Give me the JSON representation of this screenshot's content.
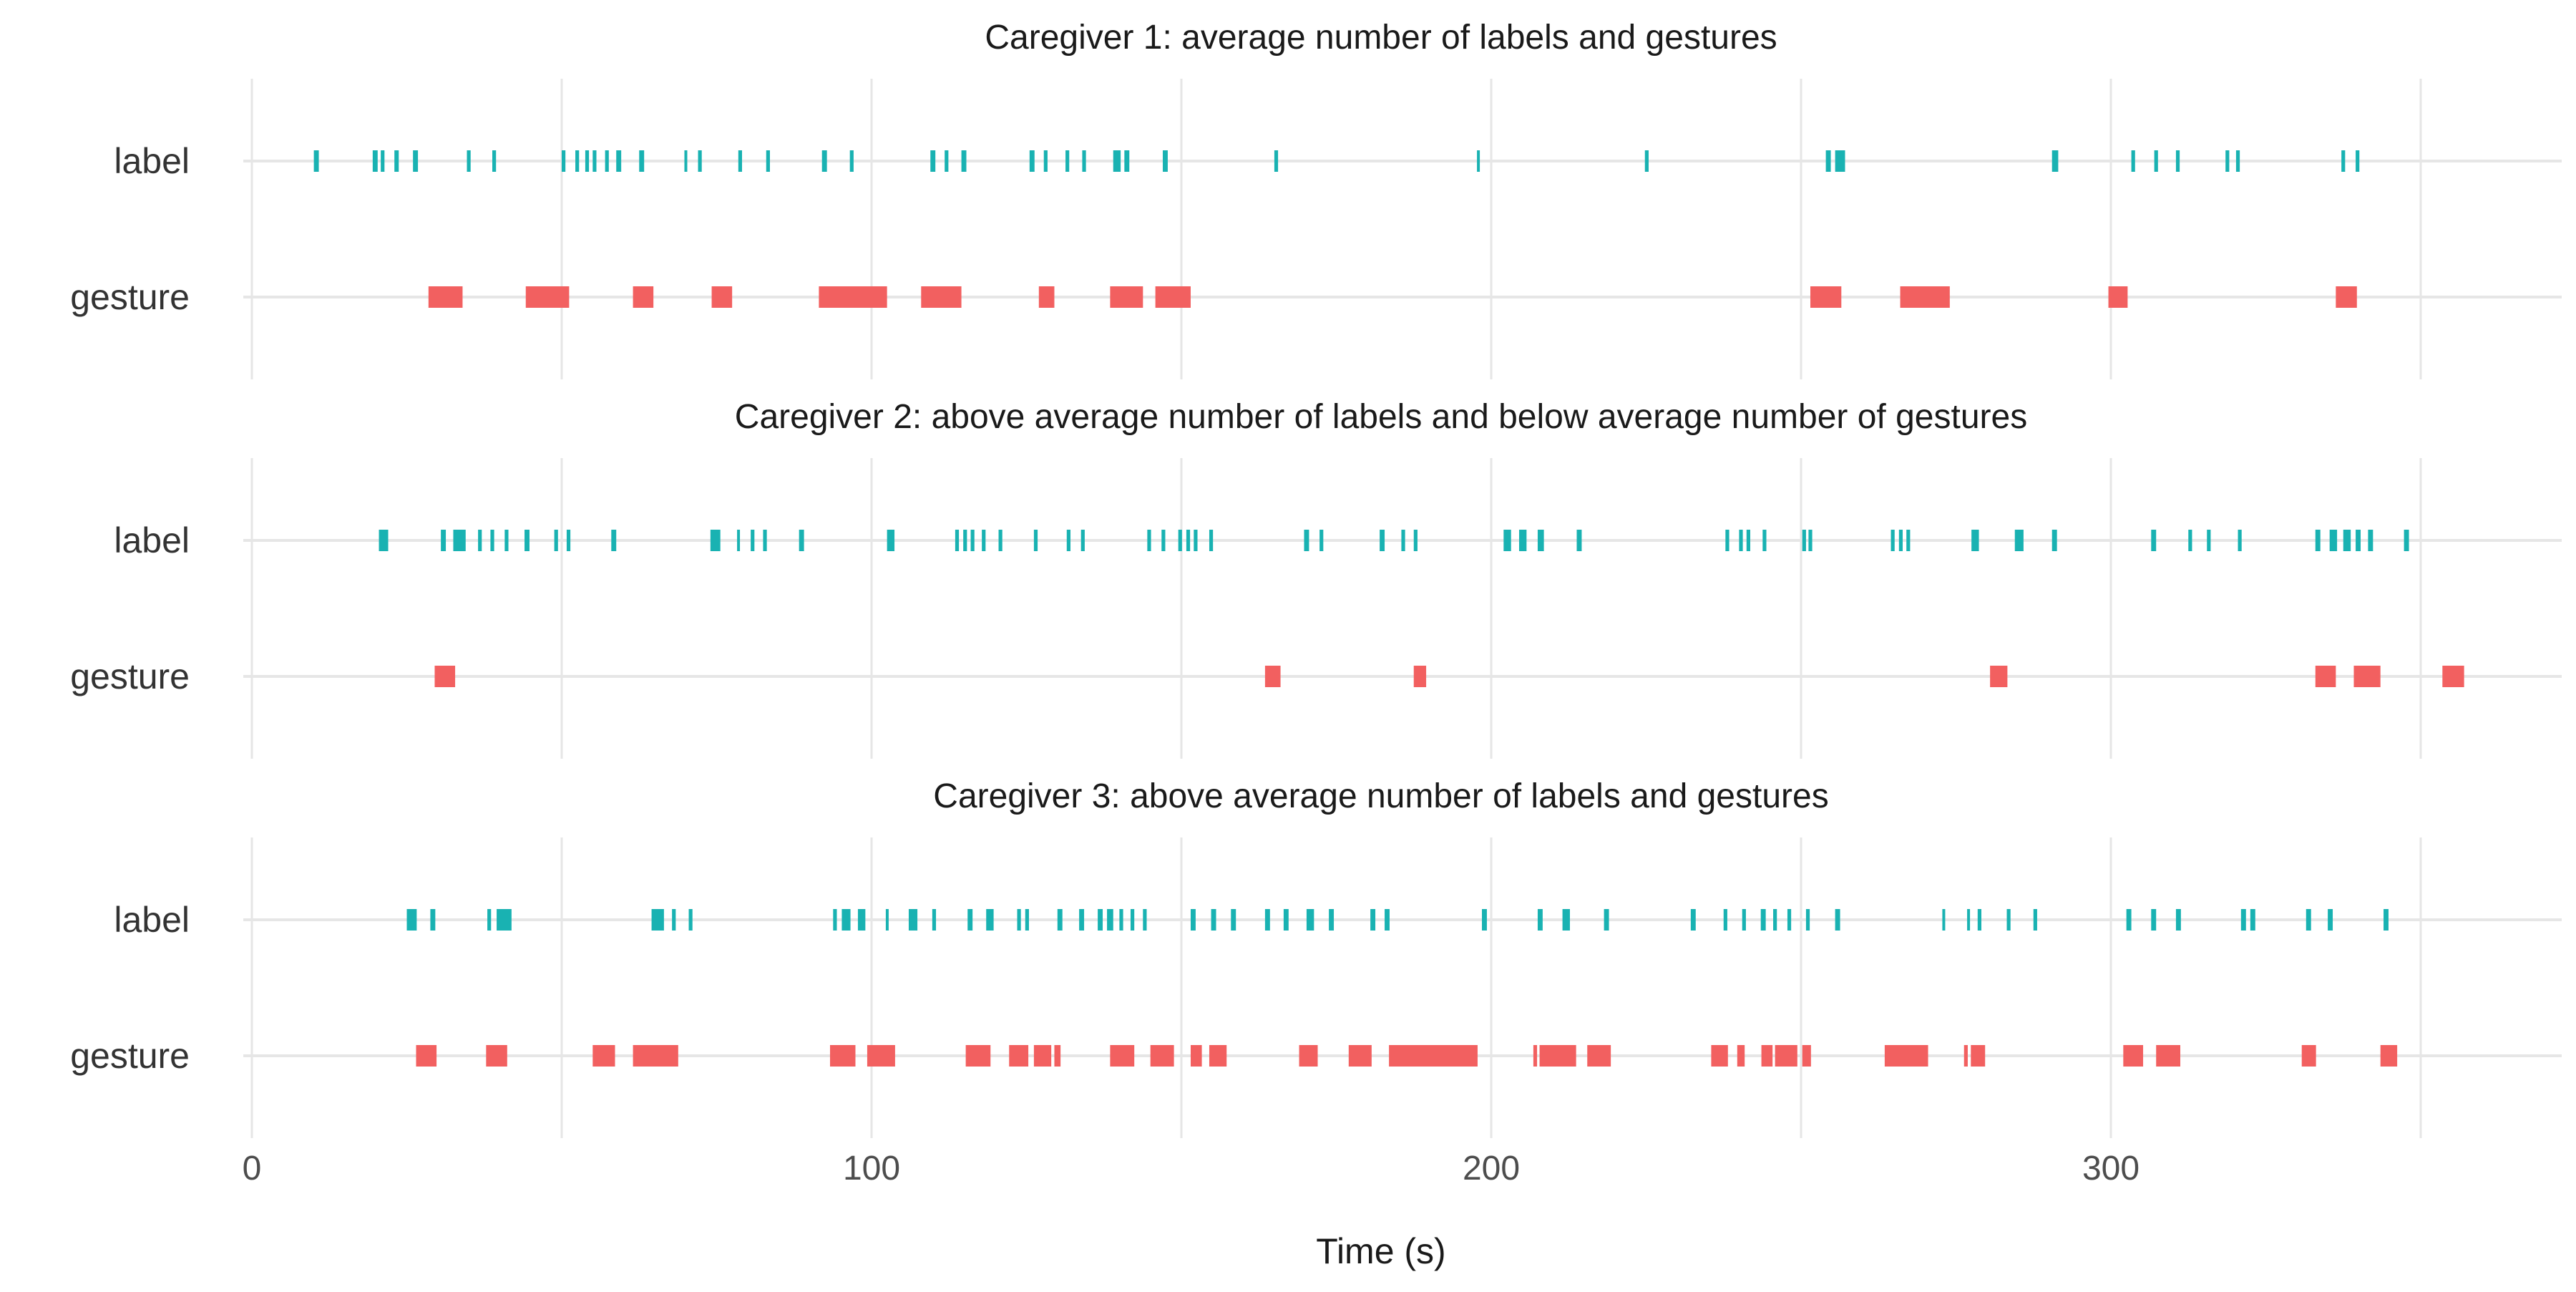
{
  "chart_data": {
    "type": "timeline",
    "xlabel": "Time (s)",
    "xlim": [
      -6,
      373
    ],
    "x_ticks": [
      0,
      100,
      200,
      300
    ],
    "minor_ticks": [
      50,
      150,
      250,
      350
    ],
    "grid": true,
    "colors": {
      "label": "#19b2b2",
      "gesture": "#f26060",
      "grid": "#e6e6e6"
    },
    "rows": [
      "label",
      "gesture"
    ],
    "panels": [
      {
        "title": "Caregiver 1: average number of labels and gestures",
        "label": [
          [
            10.0,
            10.8
          ],
          [
            19.5,
            20.3
          ],
          [
            20.8,
            21.4
          ],
          [
            23.0,
            23.7
          ],
          [
            26.0,
            26.8
          ],
          [
            34.7,
            35.3
          ],
          [
            38.8,
            39.4
          ],
          [
            50.0,
            50.6
          ],
          [
            52.2,
            52.8
          ],
          [
            53.8,
            54.4
          ],
          [
            55.0,
            55.6
          ],
          [
            57.0,
            57.6
          ],
          [
            58.8,
            59.6
          ],
          [
            62.5,
            63.3
          ],
          [
            69.8,
            70.2
          ],
          [
            72.0,
            72.6
          ],
          [
            78.5,
            79.1
          ],
          [
            83.0,
            83.6
          ],
          [
            92.0,
            92.8
          ],
          [
            96.5,
            97.1
          ],
          [
            109.5,
            110.3
          ],
          [
            111.8,
            112.4
          ],
          [
            114.5,
            115.3
          ],
          [
            125.5,
            126.3
          ],
          [
            127.8,
            128.4
          ],
          [
            131.3,
            131.9
          ],
          [
            134.0,
            134.6
          ],
          [
            139.0,
            140.2
          ],
          [
            140.8,
            141.6
          ],
          [
            147.0,
            147.8
          ],
          [
            165.0,
            165.6
          ],
          [
            197.7,
            198.1
          ],
          [
            224.8,
            225.4
          ],
          [
            254.0,
            254.8
          ],
          [
            255.5,
            257.1
          ],
          [
            290.5,
            291.5
          ],
          [
            303.3,
            303.9
          ],
          [
            307.0,
            307.6
          ],
          [
            310.5,
            311.1
          ],
          [
            318.5,
            319.1
          ],
          [
            320.2,
            320.8
          ],
          [
            337.2,
            337.8
          ],
          [
            339.5,
            340.1
          ]
        ],
        "gesture": [
          [
            28.5,
            34.0
          ],
          [
            44.2,
            51.2
          ],
          [
            61.5,
            64.8
          ],
          [
            74.2,
            77.5
          ],
          [
            91.5,
            102.5
          ],
          [
            108.0,
            114.5
          ],
          [
            127.0,
            129.5
          ],
          [
            138.5,
            143.8
          ],
          [
            145.8,
            151.5
          ],
          [
            251.5,
            256.5
          ],
          [
            266.0,
            274.0
          ],
          [
            299.6,
            302.7
          ],
          [
            336.3,
            339.7
          ]
        ]
      },
      {
        "title": "Caregiver 2: above average number of labels and below average number of gestures",
        "label": [
          [
            20.5,
            22.0
          ],
          [
            30.5,
            31.3
          ],
          [
            32.5,
            34.5
          ],
          [
            36.5,
            37.1
          ],
          [
            38.5,
            39.1
          ],
          [
            40.8,
            41.4
          ],
          [
            44.0,
            44.8
          ],
          [
            48.8,
            49.4
          ],
          [
            50.8,
            51.4
          ],
          [
            58.0,
            58.8
          ],
          [
            74.0,
            75.6
          ],
          [
            78.3,
            78.7
          ],
          [
            80.5,
            81.1
          ],
          [
            82.5,
            83.1
          ],
          [
            88.3,
            89.1
          ],
          [
            102.5,
            103.7
          ],
          [
            113.5,
            114.1
          ],
          [
            114.8,
            115.4
          ],
          [
            116.0,
            116.6
          ],
          [
            117.8,
            118.4
          ],
          [
            120.5,
            121.1
          ],
          [
            126.2,
            126.8
          ],
          [
            131.5,
            132.1
          ],
          [
            133.8,
            134.4
          ],
          [
            144.5,
            145.1
          ],
          [
            146.8,
            147.4
          ],
          [
            149.5,
            150.1
          ],
          [
            150.8,
            151.4
          ],
          [
            152.0,
            152.6
          ],
          [
            154.5,
            155.1
          ],
          [
            169.8,
            170.6
          ],
          [
            172.3,
            172.9
          ],
          [
            182.0,
            182.8
          ],
          [
            185.5,
            186.1
          ],
          [
            187.5,
            188.1
          ],
          [
            202.0,
            203.2
          ],
          [
            204.5,
            205.7
          ],
          [
            207.5,
            208.5
          ],
          [
            213.8,
            214.6
          ],
          [
            237.8,
            238.4
          ],
          [
            240.0,
            240.6
          ],
          [
            241.2,
            241.8
          ],
          [
            243.8,
            244.4
          ],
          [
            250.2,
            250.8
          ],
          [
            251.2,
            251.8
          ],
          [
            264.5,
            265.1
          ],
          [
            265.8,
            266.4
          ],
          [
            267.0,
            267.6
          ],
          [
            277.5,
            278.7
          ],
          [
            284.5,
            285.9
          ],
          [
            290.5,
            291.3
          ],
          [
            306.5,
            307.3
          ],
          [
            312.5,
            313.1
          ],
          [
            315.5,
            316.1
          ],
          [
            320.5,
            321.1
          ],
          [
            333.0,
            333.8
          ],
          [
            335.3,
            336.5
          ],
          [
            337.5,
            338.7
          ],
          [
            339.5,
            340.3
          ],
          [
            341.5,
            342.3
          ],
          [
            347.3,
            348.1
          ]
        ],
        "gesture": [
          [
            29.5,
            32.8
          ],
          [
            163.5,
            166.0
          ],
          [
            187.5,
            189.5
          ],
          [
            280.5,
            283.3
          ],
          [
            333.0,
            336.3
          ],
          [
            339.2,
            343.5
          ],
          [
            353.5,
            357.0
          ]
        ]
      },
      {
        "title": "Caregiver 3: above average number of labels and gestures",
        "label": [
          [
            25.0,
            26.6
          ],
          [
            28.8,
            29.6
          ],
          [
            38.0,
            38.6
          ],
          [
            39.5,
            41.9
          ],
          [
            64.5,
            66.5
          ],
          [
            67.8,
            68.4
          ],
          [
            70.5,
            71.1
          ],
          [
            93.8,
            94.4
          ],
          [
            95.2,
            96.6
          ],
          [
            97.8,
            99.0
          ],
          [
            102.3,
            102.7
          ],
          [
            106.0,
            107.4
          ],
          [
            109.8,
            110.4
          ],
          [
            115.5,
            116.3
          ],
          [
            118.5,
            119.7
          ],
          [
            123.5,
            124.1
          ],
          [
            124.8,
            125.4
          ],
          [
            130.0,
            130.8
          ],
          [
            133.5,
            134.3
          ],
          [
            136.5,
            137.3
          ],
          [
            138.0,
            139.0
          ],
          [
            140.0,
            140.6
          ],
          [
            141.8,
            142.4
          ],
          [
            143.8,
            144.4
          ],
          [
            151.5,
            152.3
          ],
          [
            154.8,
            155.6
          ],
          [
            158.0,
            158.8
          ],
          [
            163.5,
            164.3
          ],
          [
            166.5,
            167.3
          ],
          [
            170.2,
            171.4
          ],
          [
            173.8,
            174.6
          ],
          [
            180.5,
            181.3
          ],
          [
            182.8,
            183.6
          ],
          [
            198.5,
            199.3
          ],
          [
            207.5,
            208.3
          ],
          [
            211.5,
            212.7
          ],
          [
            218.2,
            219.0
          ],
          [
            232.2,
            233.0
          ],
          [
            237.5,
            238.1
          ],
          [
            240.5,
            241.1
          ],
          [
            243.5,
            244.3
          ],
          [
            245.5,
            246.1
          ],
          [
            247.8,
            248.4
          ],
          [
            250.8,
            251.4
          ],
          [
            255.5,
            256.3
          ],
          [
            272.8,
            273.2
          ],
          [
            276.8,
            277.2
          ],
          [
            278.5,
            279.1
          ],
          [
            283.2,
            283.8
          ],
          [
            287.5,
            288.1
          ],
          [
            302.5,
            303.3
          ],
          [
            306.5,
            307.3
          ],
          [
            310.5,
            311.3
          ],
          [
            321.0,
            321.8
          ],
          [
            322.5,
            323.3
          ],
          [
            331.5,
            332.3
          ],
          [
            335.0,
            335.8
          ],
          [
            344.0,
            344.8
          ]
        ],
        "gesture": [
          [
            26.5,
            29.8
          ],
          [
            37.8,
            41.2
          ],
          [
            55.0,
            58.6
          ],
          [
            61.5,
            68.8
          ],
          [
            93.3,
            97.4
          ],
          [
            99.3,
            103.8
          ],
          [
            115.2,
            119.2
          ],
          [
            122.2,
            125.3
          ],
          [
            126.2,
            129.0
          ],
          [
            129.5,
            130.5
          ],
          [
            138.5,
            142.4
          ],
          [
            145.0,
            148.8
          ],
          [
            151.5,
            153.3
          ],
          [
            154.5,
            157.3
          ],
          [
            169.0,
            172.0
          ],
          [
            177.0,
            180.7
          ],
          [
            183.5,
            197.8
          ],
          [
            206.8,
            207.4
          ],
          [
            207.8,
            213.7
          ],
          [
            215.5,
            219.3
          ],
          [
            235.5,
            238.2
          ],
          [
            239.7,
            240.9
          ],
          [
            243.6,
            245.4
          ],
          [
            245.8,
            249.4
          ],
          [
            250.2,
            251.6
          ],
          [
            263.5,
            270.5
          ],
          [
            276.3,
            276.9
          ],
          [
            277.4,
            279.7
          ],
          [
            302.0,
            305.2
          ],
          [
            307.3,
            311.2
          ],
          [
            330.8,
            333.1
          ],
          [
            343.5,
            346.2
          ]
        ]
      }
    ]
  }
}
